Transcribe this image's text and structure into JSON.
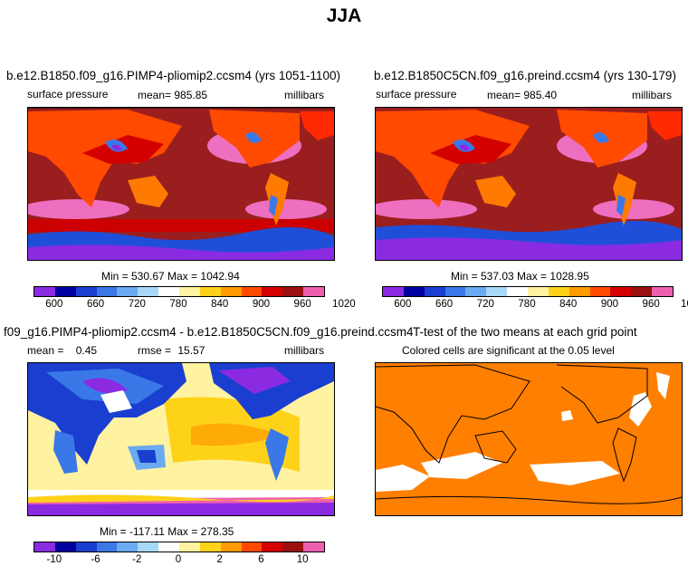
{
  "title": "JJA",
  "panels": [
    {
      "name": "b.e12.B1850.f09_g16.PIMP4-pliomip2.ccsm4 (yrs 1051-1100)",
      "variable": "surface pressure",
      "mean_label": "mean=",
      "mean": "985.85",
      "units": "millibars",
      "stats": "Min = 530.67 Max = 1042.94"
    },
    {
      "name": "b.e12.B1850C5CN.f09_g16.preind.ccsm4 (yrs 130-179)",
      "variable": "surface pressure",
      "mean_label": "mean=",
      "mean": "985.40",
      "units": "millibars",
      "stats": "Min = 537.03 Max = 1028.95"
    },
    {
      "name": "f09_g16.PIMP4-pliomip2.ccsm4 - b.e12.B1850C5CN.f09_g16.preind.ccsm4",
      "mean_label": "mean =",
      "mean": "0.45",
      "rmse_label": "rmse =",
      "rmse": "15.57",
      "units": "millibars",
      "stats": "Min = -117.11 Max = 278.35"
    },
    {
      "name": "T-test of the two means at each grid point",
      "subtitle": "Colored cells are significant at the 0.05 level"
    }
  ],
  "colorbar_abs": {
    "ticks": [
      "600",
      "660",
      "720",
      "780",
      "840",
      "900",
      "960",
      "1020"
    ],
    "colors": [
      "#8a2be2",
      "#0000a0",
      "#1a3fd0",
      "#3a78e8",
      "#6aaaf0",
      "#a8d8f8",
      "#ffffff",
      "#fff2a0",
      "#ffd21a",
      "#ff9a00",
      "#ff4a00",
      "#d40000",
      "#9a1010",
      "#ee5fb0"
    ]
  },
  "colorbar_diff": {
    "ticks": [
      "-10",
      "-6",
      "-2",
      "0",
      "2",
      "6",
      "10"
    ],
    "colors": [
      "#8a2be2",
      "#0000a0",
      "#1a3fd0",
      "#3a78e8",
      "#6aaaf0",
      "#a8d8f8",
      "#ffffff",
      "#fff2a0",
      "#ffd21a",
      "#ff9a00",
      "#ff4a00",
      "#d40000",
      "#9a1010",
      "#ee5fb0"
    ]
  }
}
